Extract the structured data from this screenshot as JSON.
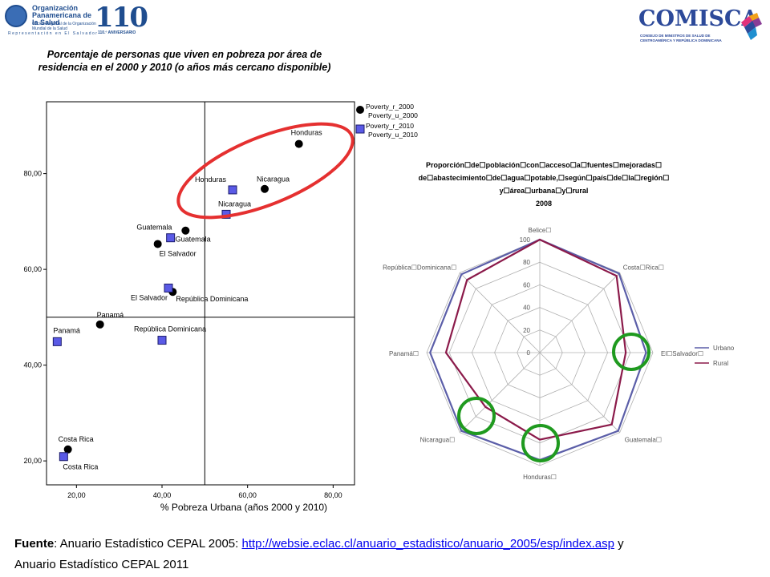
{
  "logos": {
    "ops": {
      "org_name": "Organización Panamericana de la Salud",
      "who_text": "Oficina Regional de la Organización Mundial de la Salud",
      "representation": "Representación en El Salvador"
    },
    "aniversario": {
      "number": "110",
      "caption": "110.º ANIVERSARIO"
    },
    "comisca": {
      "name": "COMISCA",
      "subtitle": "CONSEJO DE MINISTROS DE SALUD DE CENTROAMÉRICA Y REPÚBLICA DOMINICANA"
    }
  },
  "colors": {
    "point_2000": "#000000",
    "point_2010": "#5a5ae6",
    "urbano": "#5b5ea8",
    "rural": "#8b1a4a",
    "red_ellipse": "#e53030",
    "green_circle": "#1f9a1f"
  },
  "chart_data": [
    {
      "type": "scatter",
      "title": "Porcentaje de personas que viven en pobreza por área de residencia en el 2000 y 2010 (o años más cercano disponible)",
      "xlabel": "% Pobreza Urbana (años 2000 y 2010)",
      "ylabel": "",
      "xlim": [
        13,
        85
      ],
      "ylim": [
        15,
        95
      ],
      "x_ticks": [
        "20,00",
        "40,00",
        "60,00",
        "80,00"
      ],
      "x_tick_values": [
        20,
        40,
        60,
        80
      ],
      "y_ticks": [
        "20,00",
        "40,00",
        "60,00",
        "80,00"
      ],
      "y_tick_values": [
        20,
        40,
        60,
        80
      ],
      "reference_lines": {
        "x": 50,
        "y": 50
      },
      "legend": {
        "placement": "top-right",
        "entries": [
          {
            "marker": "circle",
            "labels": [
              "Poverty_r_2000",
              "Poverty_u_2000"
            ]
          },
          {
            "marker": "square",
            "labels": [
              "Poverty_r_2010",
              "Poverty_u_2010"
            ]
          }
        ]
      },
      "series": [
        {
          "marker": "circle",
          "points": [
            {
              "label": "Honduras",
              "x": 72,
              "y": 86.2
            },
            {
              "label": "Nicaragua",
              "x": 64,
              "y": 76.8
            },
            {
              "label": "Guatemala",
              "x": 45.5,
              "y": 68.1
            },
            {
              "label": "El Salvador",
              "x": 39,
              "y": 65.3
            },
            {
              "label": "República Dominicana",
              "x": 42.5,
              "y": 55.3
            },
            {
              "label": "Panamá",
              "x": 25.5,
              "y": 48.5
            },
            {
              "label": "Costa Rica",
              "x": 18,
              "y": 22.4
            }
          ]
        },
        {
          "marker": "square",
          "points": [
            {
              "label": "Honduras",
              "x": 56.5,
              "y": 76.6
            },
            {
              "label": "Nicaragua",
              "x": 55,
              "y": 71.5
            },
            {
              "label": "Guatemala",
              "x": 42,
              "y": 66.6
            },
            {
              "label": "El Salvador",
              "x": 41.5,
              "y": 56.1
            },
            {
              "label": "República Dominicana",
              "x": 40,
              "y": 45.2
            },
            {
              "label": "Panamá",
              "x": 15.5,
              "y": 44.9
            },
            {
              "label": "Costa Rica",
              "x": 17,
              "y": 20.9
            }
          ]
        }
      ]
    },
    {
      "type": "radar",
      "title_lines": [
        "Proporción☐de☐población☐con☐acceso☐a☐fuentes☐mejoradas☐",
        "de☐abastecimiento☐de☐agua☐potable,☐según☐país☐de☐la☐región☐",
        "y☐área☐urbana☐y☐rural",
        "2008"
      ],
      "axes": [
        "Belice☐",
        "Costa☐Rica☐",
        "El☐Salvador☐",
        "Guatemala☐",
        "Honduras☐",
        "Nicaragua☐",
        "Panamá☐",
        "República☐Dominicana☐"
      ],
      "rlim": [
        0,
        100
      ],
      "r_ticks": [
        "0",
        "20",
        "40",
        "60",
        "80",
        "100"
      ],
      "r_tick_values": [
        0,
        20,
        40,
        60,
        80,
        100
      ],
      "legend": {
        "placement": "right"
      },
      "series": [
        {
          "name": "Urbano",
          "values": [
            100,
            99,
            94,
            98,
            95,
            98,
            97,
            98
          ]
        },
        {
          "name": "Rural",
          "values": [
            100,
            96,
            76,
            90,
            77,
            68,
            83,
            91
          ]
        }
      ]
    }
  ],
  "footer": {
    "label": "Fuente",
    "text1": ": Anuario Estadístico CEPAL 2005: ",
    "link": "http://websie.eclac.cl/anuario_estadistico/anuario_2005/esp/index.asp",
    "text2": " y",
    "line2": "Anuario Estadístico CEPAL  2011"
  }
}
